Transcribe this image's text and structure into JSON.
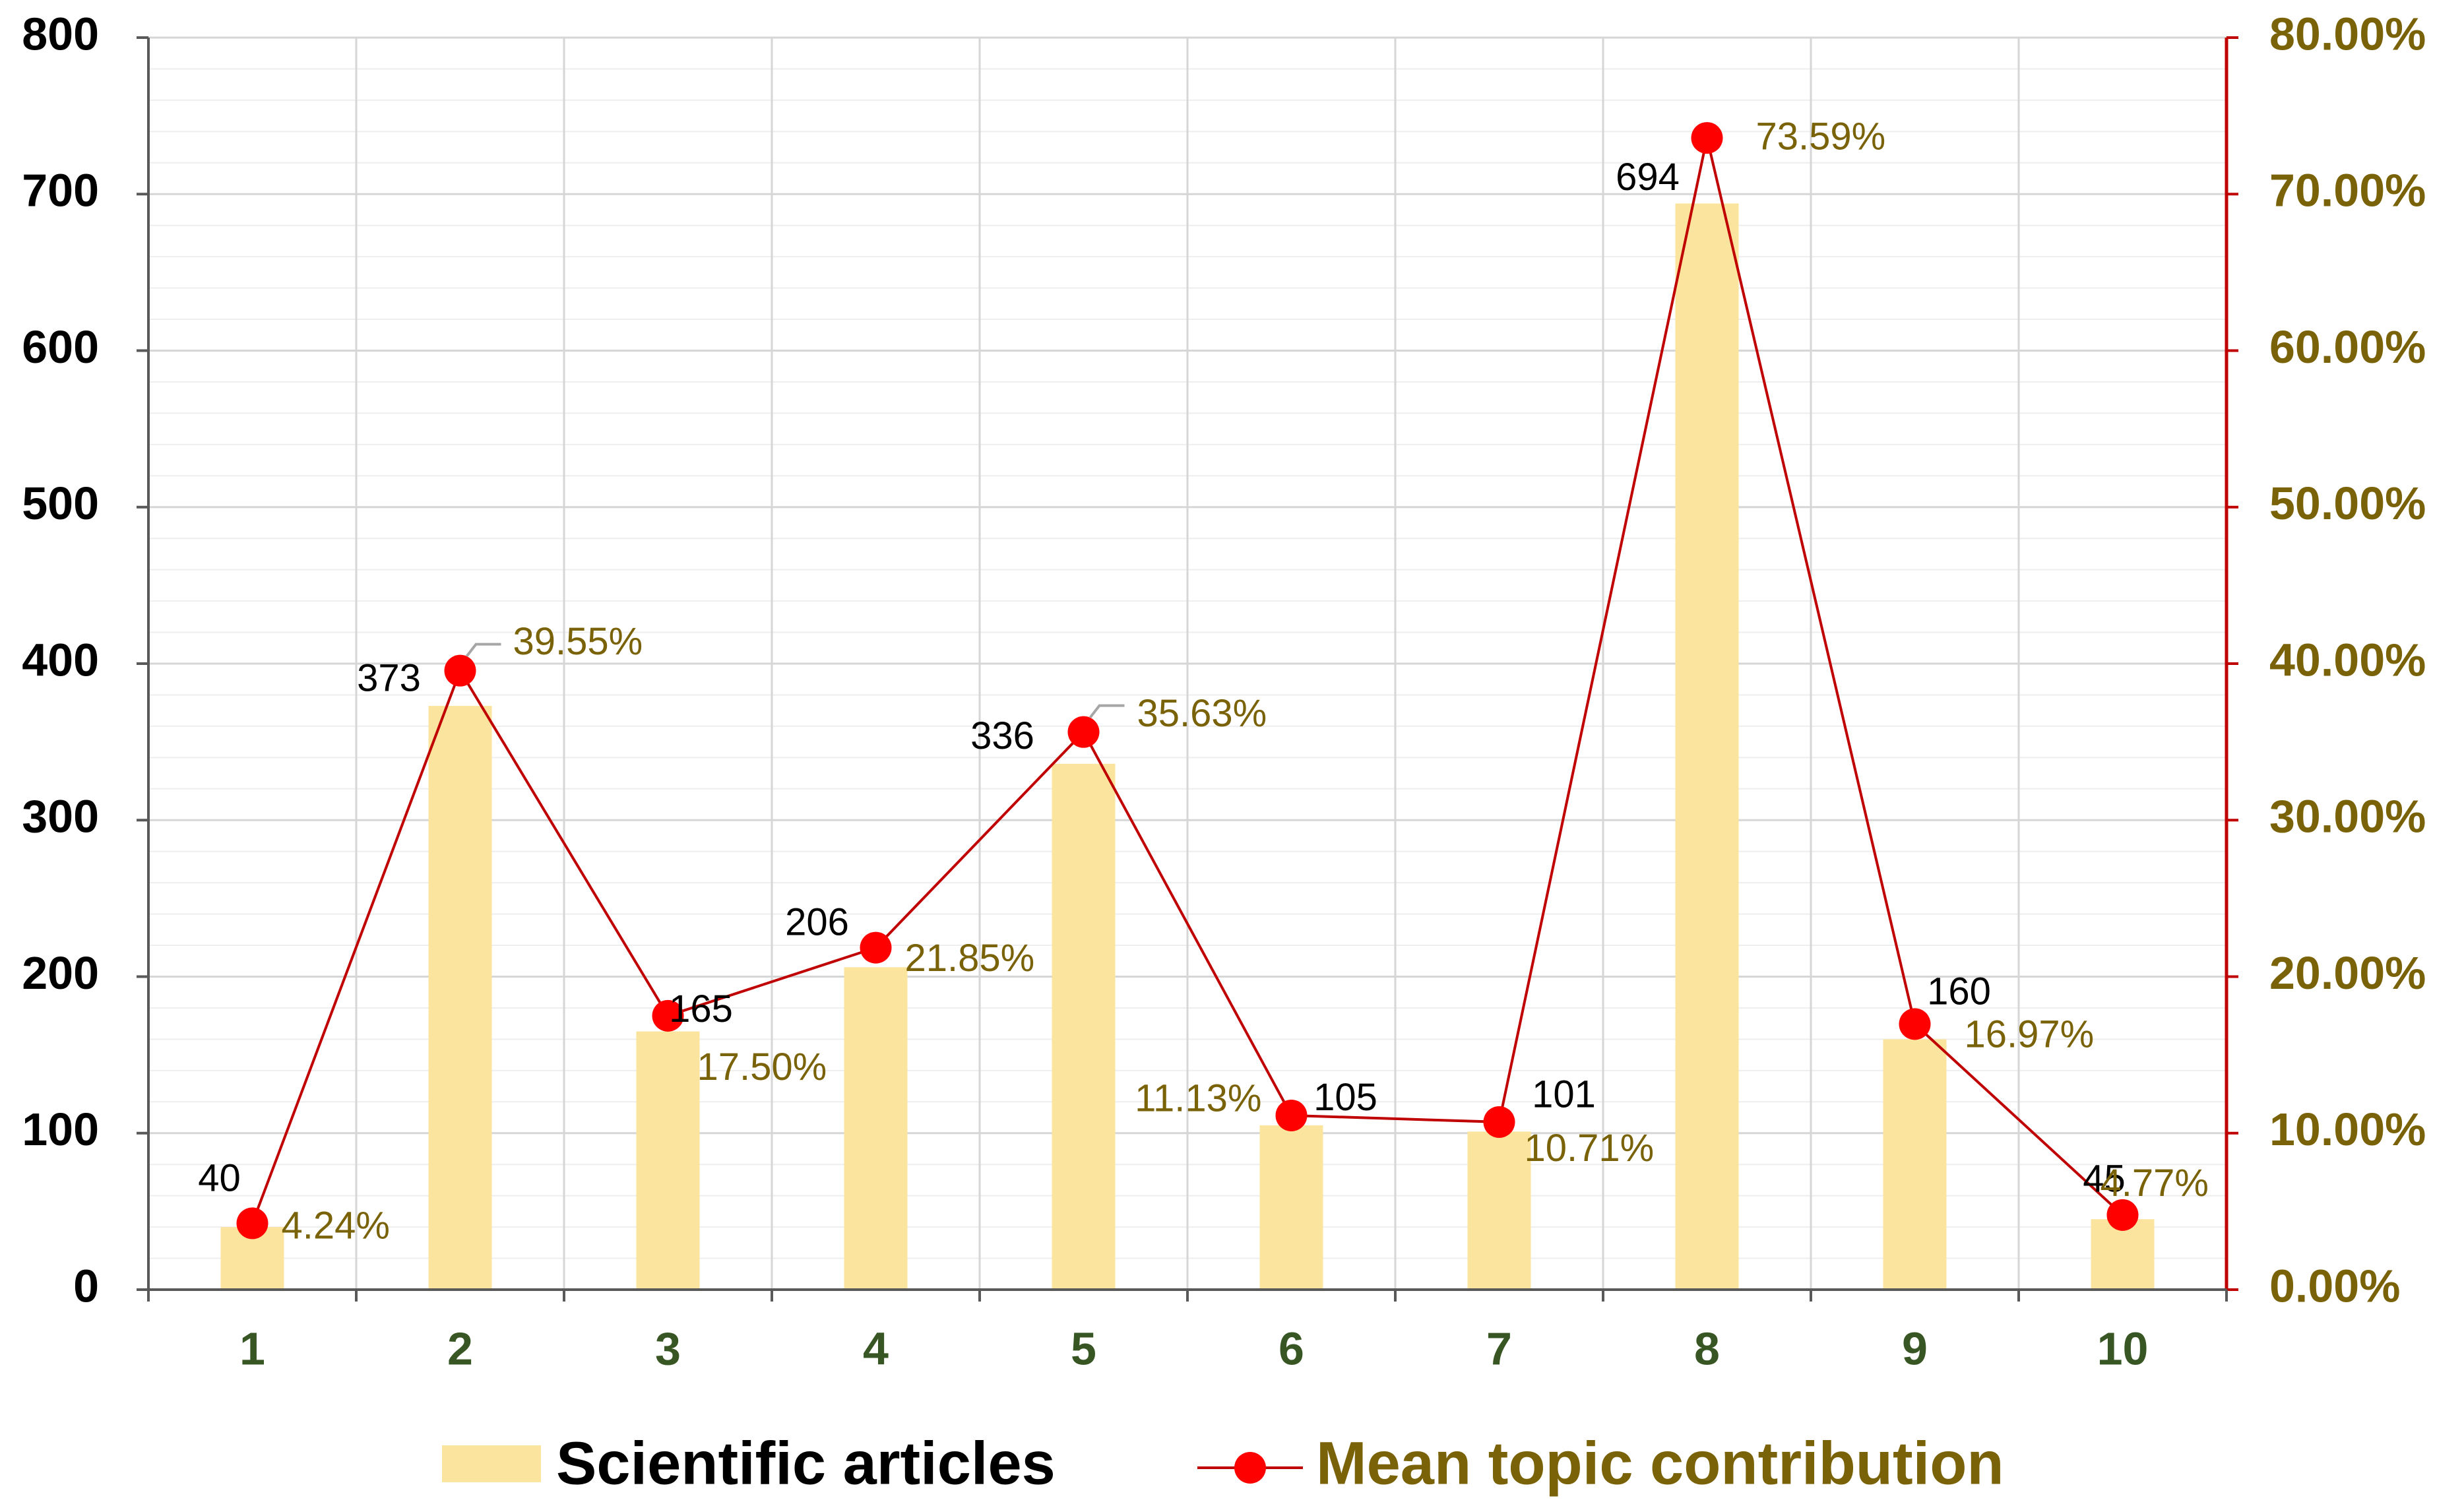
{
  "colors": {
    "bar": "#FBE49E",
    "line": "#C00000",
    "marker": "#FF0000",
    "secondary_axis": "#C00000",
    "pct_text": "#7A6208",
    "category_text": "#375623",
    "primary_text": "#000000",
    "grid_major": "#D6D6D6",
    "grid_minor": "#EEEEEE"
  },
  "chart_data": {
    "type": "bar",
    "categories": [
      "1",
      "2",
      "3",
      "4",
      "5",
      "6",
      "7",
      "8",
      "9",
      "10"
    ],
    "series": [
      {
        "name": "Scientific articles",
        "type": "bar",
        "axis": "left",
        "values": [
          40,
          373,
          165,
          206,
          336,
          105,
          101,
          694,
          160,
          45
        ],
        "labels": [
          "40",
          "373",
          "165",
          "206",
          "336",
          "105",
          "101",
          "694",
          "160",
          "45"
        ]
      },
      {
        "name": "Mean topic contribution",
        "type": "line",
        "axis": "right",
        "values": [
          4.24,
          39.55,
          17.5,
          21.85,
          35.63,
          11.13,
          10.71,
          73.59,
          16.97,
          4.77
        ],
        "labels": [
          "4.24%",
          "39.55%",
          "17.50%",
          "21.85%",
          "35.63%",
          "11.13%",
          "10.71%",
          "73.59%",
          "16.97%",
          "4.77%"
        ]
      }
    ],
    "y_left": {
      "lim": [
        0,
        800
      ],
      "ticks": [
        0,
        100,
        200,
        300,
        400,
        500,
        600,
        700,
        800
      ],
      "tick_labels": [
        "0",
        "100",
        "200",
        "300",
        "400",
        "500",
        "600",
        "700",
        "800"
      ]
    },
    "y_right": {
      "lim": [
        0,
        80
      ],
      "ticks": [
        0,
        10,
        20,
        30,
        40,
        50,
        60,
        70,
        80
      ],
      "tick_labels": [
        "0.00%",
        "10.00%",
        "20.00%",
        "30.00%",
        "40.00%",
        "50.00%",
        "60.00%",
        "70.00%",
        "80.00%"
      ]
    },
    "grid": true,
    "legend": {
      "position": "bottom",
      "entries": [
        "Scientific articles",
        "Mean topic contribution"
      ]
    }
  }
}
